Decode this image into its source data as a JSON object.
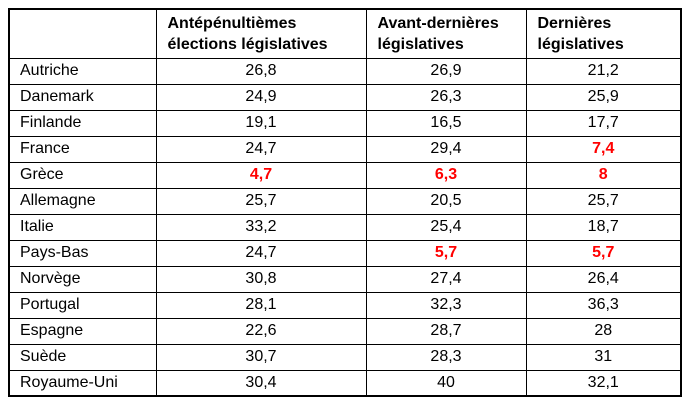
{
  "colors": {
    "red_highlight": "#ff0000",
    "text": "#000000",
    "border": "#000000",
    "background": "#ffffff"
  },
  "table": {
    "corner_label": "",
    "columns": [
      "Antépénultièmes\nélections législatives",
      "Avant-dernières\nlégislatives",
      "Dernières\nlégislatives"
    ],
    "rows": [
      {
        "country": "Autriche",
        "values": [
          "26,8",
          "26,9",
          "21,2"
        ],
        "red": [
          false,
          false,
          false
        ]
      },
      {
        "country": "Danemark",
        "values": [
          "24,9",
          "26,3",
          "25,9"
        ],
        "red": [
          false,
          false,
          false
        ]
      },
      {
        "country": "Finlande",
        "values": [
          "19,1",
          "16,5",
          "17,7"
        ],
        "red": [
          false,
          false,
          false
        ]
      },
      {
        "country": "France",
        "values": [
          "24,7",
          "29,4",
          "7,4"
        ],
        "red": [
          false,
          false,
          true
        ]
      },
      {
        "country": "Grèce",
        "values": [
          "4,7",
          "6,3",
          "8"
        ],
        "red": [
          true,
          true,
          true
        ]
      },
      {
        "country": "Allemagne",
        "values": [
          "25,7",
          "20,5",
          "25,7"
        ],
        "red": [
          false,
          false,
          false
        ]
      },
      {
        "country": "Italie",
        "values": [
          "33,2",
          "25,4",
          "18,7"
        ],
        "red": [
          false,
          false,
          false
        ]
      },
      {
        "country": "Pays-Bas",
        "values": [
          "24,7",
          "5,7",
          "5,7"
        ],
        "red": [
          false,
          true,
          true
        ]
      },
      {
        "country": "Norvège",
        "values": [
          "30,8",
          "27,4",
          "26,4"
        ],
        "red": [
          false,
          false,
          false
        ]
      },
      {
        "country": "Portugal",
        "values": [
          "28,1",
          "32,3",
          "36,3"
        ],
        "red": [
          false,
          false,
          false
        ]
      },
      {
        "country": "Espagne",
        "values": [
          "22,6",
          "28,7",
          "28"
        ],
        "red": [
          false,
          false,
          false
        ]
      },
      {
        "country": "Suède",
        "values": [
          "30,7",
          "28,3",
          "31"
        ],
        "red": [
          false,
          false,
          false
        ]
      },
      {
        "country": "Royaume-Uni",
        "values": [
          "30,4",
          "40",
          "32,1"
        ],
        "red": [
          false,
          false,
          false
        ]
      }
    ]
  }
}
